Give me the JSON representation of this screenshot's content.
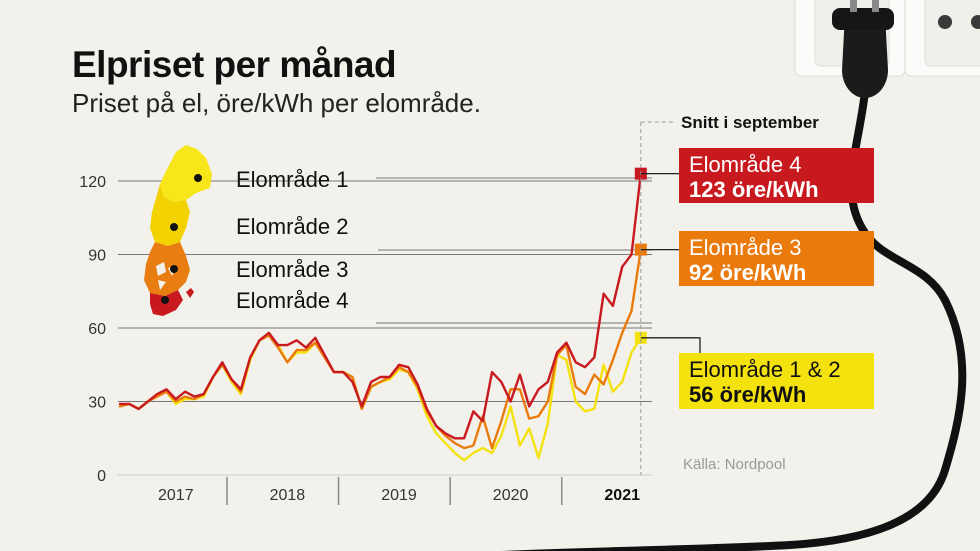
{
  "title": "Elpriset per månad",
  "subtitle": "Priset på el, öre/kWh per elområde.",
  "source": "Källa: Nordpool",
  "callouts": {
    "header": "Snitt i september",
    "area4": {
      "area": "Elområde 4",
      "value": "123 öre/kWh"
    },
    "area3": {
      "area": "Elområde 3",
      "value": "92 öre/kWh"
    },
    "area12": {
      "area": "Elområde 1 & 2",
      "value": "56 öre/kWh"
    }
  },
  "map_labels": [
    "Elområde 1",
    "Elområde 2",
    "Elområde 3",
    "Elområde 4"
  ],
  "colors": {
    "area4": "#c8191f",
    "area3": "#ea7a0c",
    "area12": "#f4e20f",
    "area1_map": "#f6e61a",
    "area2_map": "#f2d200"
  },
  "chart_data": {
    "type": "line",
    "title": "Elpriset per månad",
    "subtitle": "Priset på el, öre/kWh per elområde.",
    "ylabel": "öre/kWh",
    "ylim": [
      0,
      125
    ],
    "yticks": [
      0,
      30,
      60,
      90,
      120
    ],
    "x_start": "2017-01",
    "x_months": 57,
    "xlim": [
      0,
      57
    ],
    "xticks": [
      {
        "label": "2017",
        "x": 6,
        "bold": false
      },
      {
        "label": "2018",
        "x": 18,
        "bold": false
      },
      {
        "label": "2019",
        "x": 30,
        "bold": false
      },
      {
        "label": "2020",
        "x": 42,
        "bold": false
      },
      {
        "label": "2021",
        "x": 54,
        "bold": true
      }
    ],
    "year_dividers": [
      12,
      24,
      36,
      48
    ],
    "series": [
      {
        "name": "Elområde 1 & 2",
        "color": "#f4e20f",
        "values": [
          28,
          29,
          27,
          30,
          33,
          34,
          29,
          31,
          31,
          32,
          40,
          45,
          38,
          33,
          47,
          55,
          57,
          53,
          46,
          50,
          50,
          54,
          48,
          42,
          42,
          40,
          27,
          36,
          38,
          39,
          43,
          42,
          35,
          24,
          17,
          13,
          9,
          6,
          9,
          11,
          9,
          16,
          28,
          12,
          19,
          7,
          21,
          49,
          47,
          30,
          26,
          27,
          45,
          34,
          38,
          50,
          56
        ]
      },
      {
        "name": "Elområde 3",
        "color": "#ea7a0c",
        "values": [
          28,
          29,
          27,
          30,
          32,
          34,
          30,
          32,
          31,
          33,
          40,
          45,
          39,
          34,
          48,
          55,
          57,
          52,
          46,
          51,
          51,
          54,
          48,
          42,
          42,
          40,
          27,
          36,
          38,
          40,
          44,
          42,
          36,
          26,
          20,
          16,
          13,
          11,
          12,
          24,
          11,
          22,
          35,
          35,
          23,
          24,
          30,
          49,
          53,
          36,
          33,
          41,
          37,
          47,
          58,
          67,
          92
        ]
      },
      {
        "name": "Elområde 4",
        "color": "#c8191f",
        "values": [
          29,
          29,
          27,
          30,
          33,
          35,
          31,
          34,
          32,
          33,
          40,
          46,
          39,
          35,
          48,
          55,
          58,
          53,
          53,
          55,
          52,
          56,
          49,
          42,
          42,
          38,
          28,
          38,
          40,
          40,
          45,
          44,
          37,
          27,
          20,
          17,
          15,
          15,
          26,
          22,
          42,
          38,
          30,
          41,
          28,
          35,
          38,
          50,
          54,
          46,
          44,
          48,
          74,
          69,
          85,
          90,
          123
        ]
      }
    ]
  }
}
